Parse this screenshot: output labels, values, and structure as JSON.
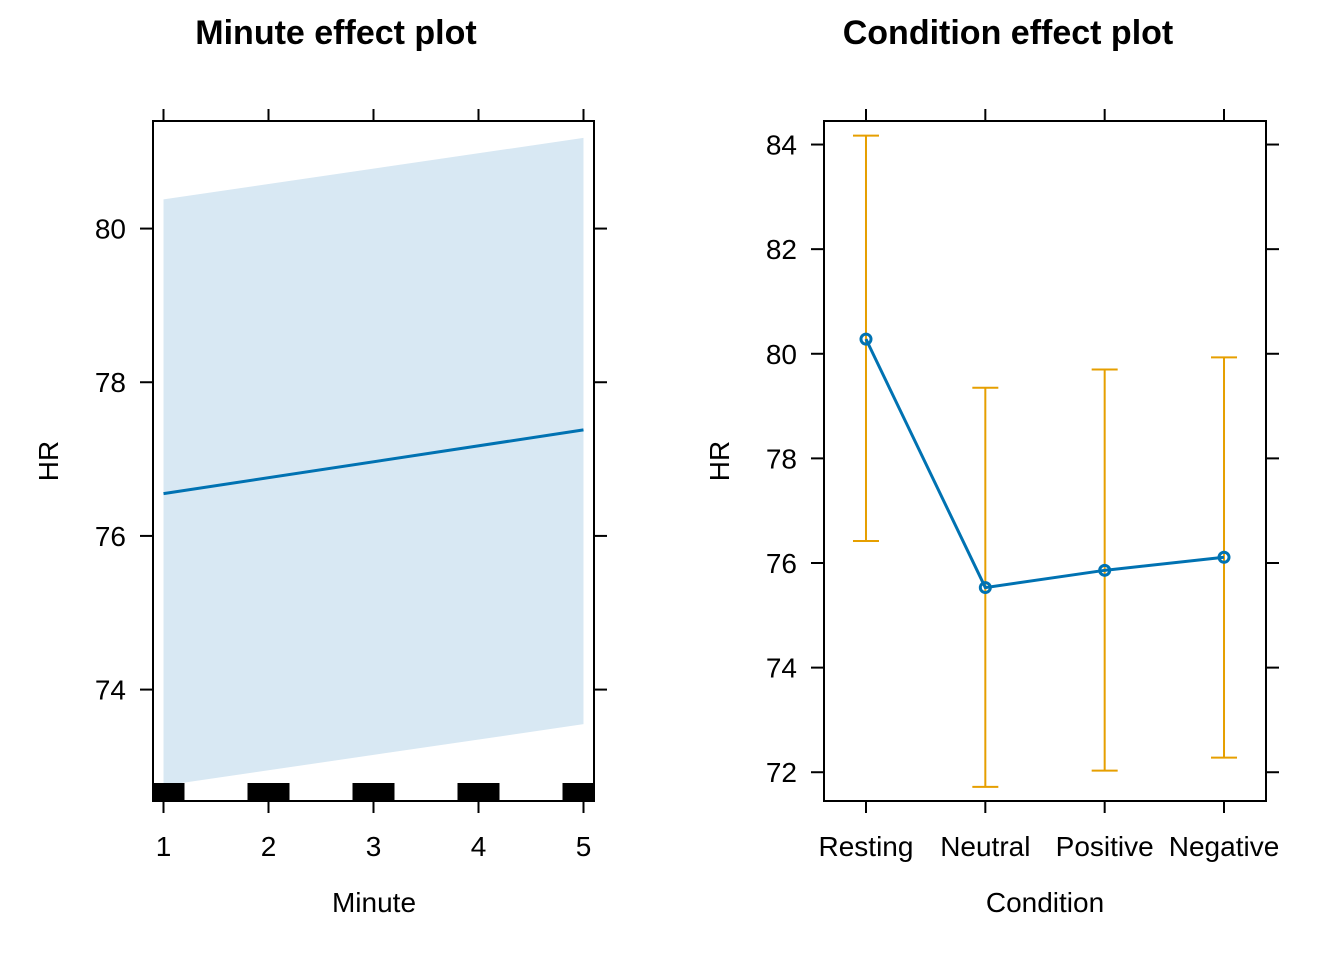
{
  "chart_data": [
    {
      "type": "line",
      "title": "Minute effect plot",
      "xlabel": "Minute",
      "ylabel": "HR",
      "x": [
        1,
        5
      ],
      "fit": [
        76.55,
        77.38
      ],
      "lower": [
        72.75,
        73.55
      ],
      "upper": [
        80.38,
        81.18
      ],
      "xticks": [
        1,
        2,
        3,
        4,
        5
      ],
      "yticks": [
        74,
        76,
        78,
        80
      ],
      "xlim": [
        0.9,
        5.1
      ],
      "ylim": [
        72.55,
        81.4
      ],
      "rug": [
        1,
        2,
        3,
        4,
        5
      ],
      "grid": false,
      "colors": {
        "line": "#0072B2",
        "band": "#D8E8F3",
        "rug": "#000000"
      }
    },
    {
      "type": "line",
      "title": "Condition effect plot",
      "xlabel": "Condition",
      "ylabel": "HR",
      "categories": [
        "Resting",
        "Neutral",
        "Positive",
        "Negative"
      ],
      "values": [
        80.28,
        75.53,
        75.86,
        76.11
      ],
      "lower": [
        76.42,
        71.72,
        72.03,
        72.28
      ],
      "upper": [
        84.17,
        79.35,
        79.7,
        79.93
      ],
      "yticks": [
        72,
        74,
        76,
        78,
        80,
        82,
        84
      ],
      "ylim": [
        71.45,
        84.45
      ],
      "grid": false,
      "colors": {
        "line": "#0072B2",
        "errorbar": "#E69F00"
      }
    }
  ]
}
